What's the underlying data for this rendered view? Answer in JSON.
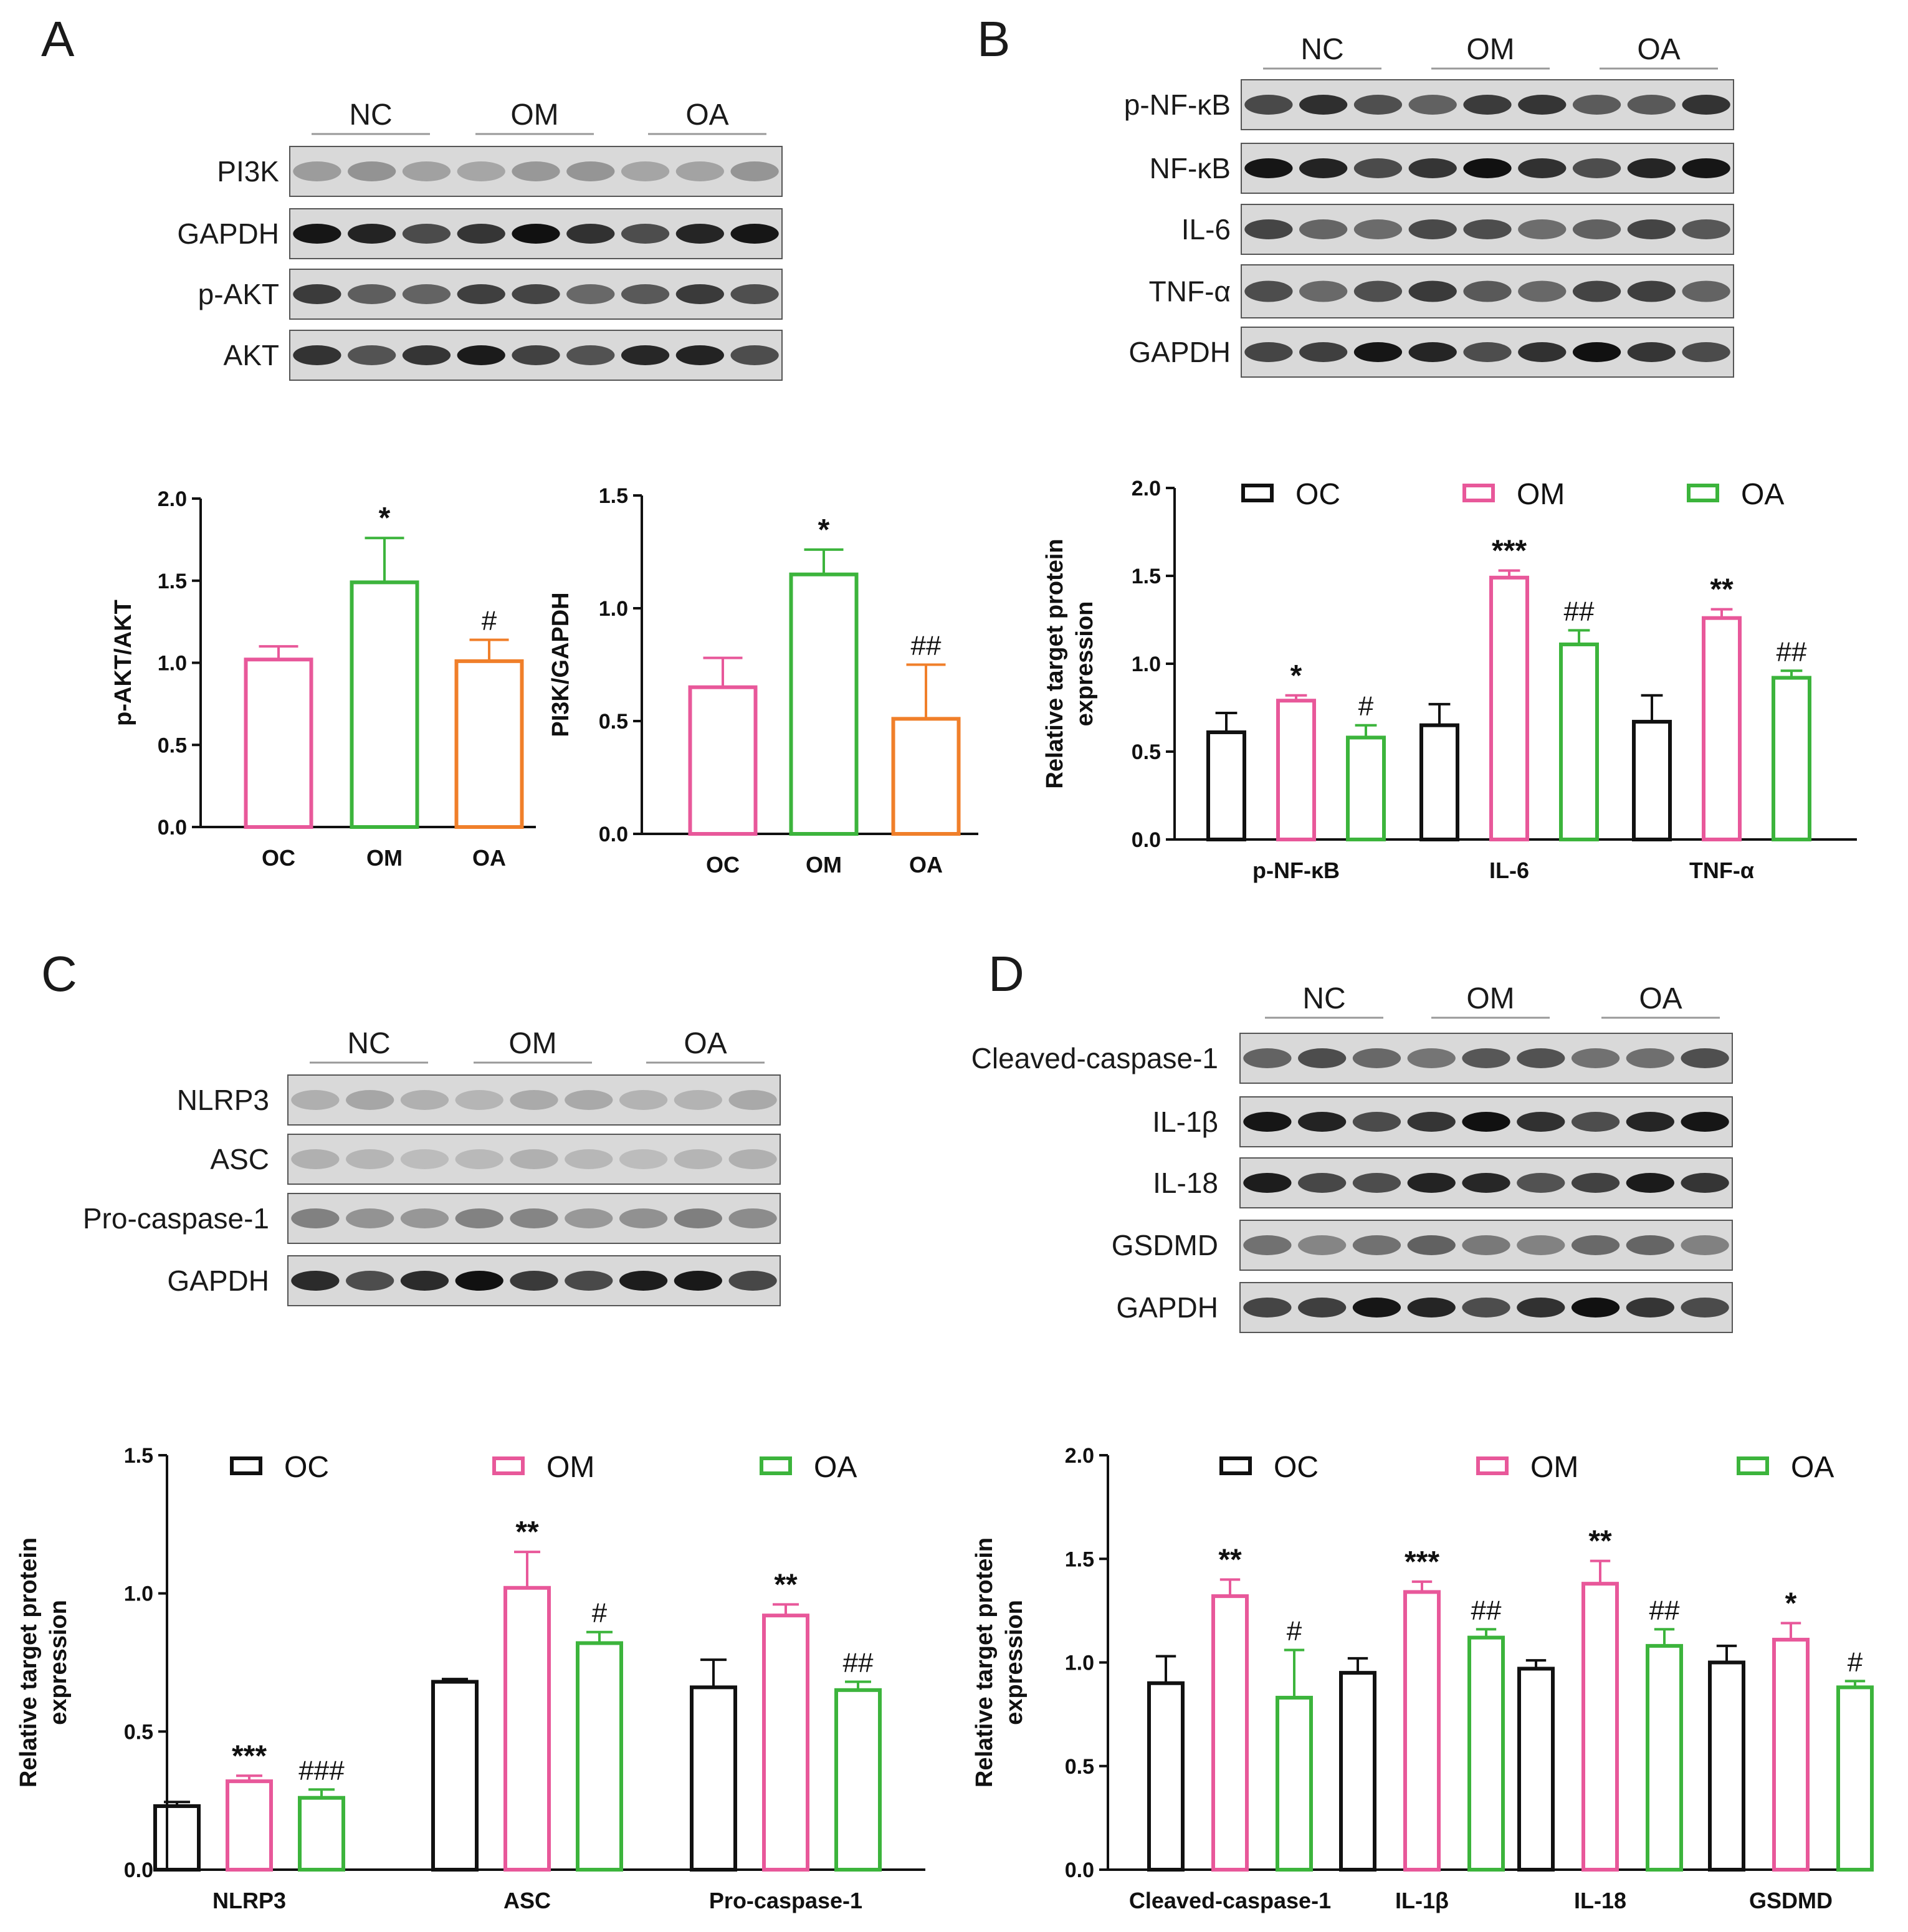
{
  "panels": [
    "A",
    "B",
    "C",
    "D"
  ],
  "colors": {
    "OC": "#111111",
    "OM": "#e8589a",
    "OA": "#3cb43c",
    "OA_orange": "#f07f2a"
  },
  "blots": {
    "A": {
      "groups": [
        "NC",
        "OM",
        "OA"
      ],
      "rows": [
        "PI3K",
        "GAPDH",
        "p-AKT",
        "AKT"
      ]
    },
    "B": {
      "groups": [
        "NC",
        "OM",
        "OA"
      ],
      "rows": [
        "p-NF-κB",
        "NF-κB",
        "IL-6",
        "TNF-α",
        "GAPDH"
      ]
    },
    "C": {
      "groups": [
        "NC",
        "OM",
        "OA"
      ],
      "rows": [
        "NLRP3",
        "ASC",
        "Pro-caspase-1",
        "GAPDH"
      ]
    },
    "D": {
      "groups": [
        "NC",
        "OM",
        "OA"
      ],
      "rows": [
        "Cleaved-caspase-1",
        "IL-1β",
        "IL-18",
        "GSDMD",
        "GAPDH"
      ]
    }
  },
  "chart_data": [
    {
      "id": "A1",
      "type": "bar",
      "ylabel": "p-AKT/AKT",
      "ylim": [
        0,
        2.0
      ],
      "yticks": [
        "0.0",
        "0.5",
        "1.0",
        "1.5",
        "2.0"
      ],
      "categories": [
        "OC",
        "OM",
        "OA"
      ],
      "values": [
        1.02,
        1.49,
        1.01
      ],
      "errors": [
        0.08,
        0.27,
        0.13
      ],
      "labels": [
        "",
        "*",
        "#"
      ],
      "colors": [
        "#e8589a",
        "#3cb43c",
        "#f07f2a"
      ]
    },
    {
      "id": "A2",
      "type": "bar",
      "ylabel": "PI3K/GAPDH",
      "ylim": [
        0,
        1.5
      ],
      "yticks": [
        "0.0",
        "0.5",
        "1.0",
        "1.5"
      ],
      "categories": [
        "OC",
        "OM",
        "OA"
      ],
      "values": [
        0.65,
        1.15,
        0.51
      ],
      "errors": [
        0.13,
        0.11,
        0.24
      ],
      "labels": [
        "",
        "*",
        "##"
      ],
      "colors": [
        "#e8589a",
        "#3cb43c",
        "#f07f2a"
      ]
    },
    {
      "id": "B",
      "type": "bar",
      "ylabel": [
        "Relative target protein",
        "expression"
      ],
      "ylim": [
        0,
        2.0
      ],
      "yticks": [
        "0.0",
        "0.5",
        "1.0",
        "1.5",
        "2.0"
      ],
      "legend": [
        "OC",
        "OM",
        "OA"
      ],
      "categories": [
        "p-NF-κB",
        "IL-6",
        "TNF-α"
      ],
      "series": [
        {
          "name": "OC",
          "values": [
            0.61,
            0.65,
            0.67
          ],
          "errors": [
            0.11,
            0.12,
            0.15
          ],
          "labels": [
            "",
            "",
            ""
          ]
        },
        {
          "name": "OM",
          "values": [
            0.79,
            1.49,
            1.26
          ],
          "errors": [
            0.03,
            0.04,
            0.05
          ],
          "labels": [
            "*",
            "***",
            "**"
          ]
        },
        {
          "name": "OA",
          "values": [
            0.58,
            1.11,
            0.92
          ],
          "errors": [
            0.07,
            0.08,
            0.04
          ],
          "labels": [
            "#",
            "##",
            "##"
          ]
        }
      ]
    },
    {
      "id": "C",
      "type": "bar",
      "ylabel": [
        "Relative target protein",
        "expression"
      ],
      "ylim": [
        0,
        1.5
      ],
      "yticks": [
        "0.0",
        "0.5",
        "1.0",
        "1.5"
      ],
      "legend": [
        "OC",
        "OM",
        "OA"
      ],
      "categories": [
        "NLRP3",
        "ASC",
        "Pro-caspase-1"
      ],
      "series": [
        {
          "name": "OC",
          "values": [
            0.23,
            0.68,
            0.66
          ],
          "errors": [
            0.015,
            0.01,
            0.1
          ],
          "labels": [
            "",
            "",
            ""
          ]
        },
        {
          "name": "OM",
          "values": [
            0.32,
            1.02,
            0.92
          ],
          "errors": [
            0.02,
            0.13,
            0.04
          ],
          "labels": [
            "***",
            "**",
            "**"
          ]
        },
        {
          "name": "OA",
          "values": [
            0.26,
            0.82,
            0.65
          ],
          "errors": [
            0.03,
            0.04,
            0.03
          ],
          "labels": [
            "###",
            "#",
            "##"
          ]
        }
      ]
    },
    {
      "id": "D",
      "type": "bar",
      "ylabel": [
        "Relative target protein",
        "expression"
      ],
      "ylim": [
        0,
        2.0
      ],
      "yticks": [
        "0.0",
        "0.5",
        "1.0",
        "1.5",
        "2.0"
      ],
      "legend": [
        "OC",
        "OM",
        "OA"
      ],
      "categories": [
        "Cleaved-caspase-1",
        "IL-1β",
        "IL-18",
        "GSDMD"
      ],
      "series": [
        {
          "name": "OC",
          "values": [
            0.9,
            0.95,
            0.97,
            1.0
          ],
          "errors": [
            0.13,
            0.07,
            0.04,
            0.08
          ],
          "labels": [
            "",
            "",
            "",
            ""
          ]
        },
        {
          "name": "OM",
          "values": [
            1.32,
            1.34,
            1.38,
            1.11
          ],
          "errors": [
            0.08,
            0.05,
            0.11,
            0.08
          ],
          "labels": [
            "**",
            "***",
            "**",
            "*"
          ]
        },
        {
          "name": "OA",
          "values": [
            0.83,
            1.12,
            1.08,
            0.88
          ],
          "errors": [
            0.23,
            0.04,
            0.08,
            0.03
          ],
          "labels": [
            "#",
            "##",
            "##",
            "#"
          ]
        }
      ]
    }
  ]
}
